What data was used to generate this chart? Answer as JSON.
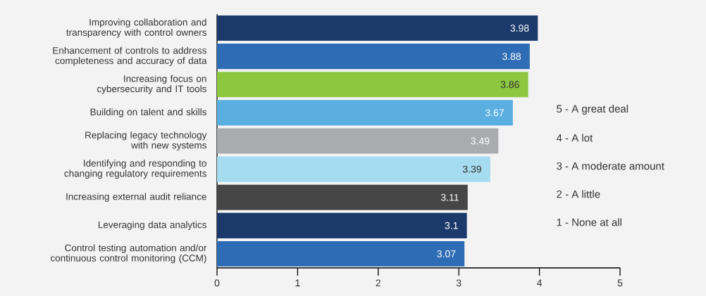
{
  "chart_data": {
    "type": "bar",
    "orientation": "horizontal",
    "categories": [
      "Improving collaboration and transparency with control owners",
      "Enhancement of controls to address completeness and accuracy of data",
      "Increasing focus on cybersecurity and IT tools",
      "Building on talent and skills",
      "Replacing legacy technology with new systems",
      "Identifying and responding to changing regulatory requirements",
      "Increasing external audit reliance",
      "Leveraging data analytics",
      "Control testing automation and/or continuous control monitoring (CCM)"
    ],
    "values": [
      3.98,
      3.88,
      3.86,
      3.67,
      3.49,
      3.39,
      3.11,
      3.1,
      3.07
    ],
    "colors": [
      "#1b3a6b",
      "#2e6db5",
      "#8dc63f",
      "#5aafe0",
      "#a9abae",
      "#a6dcf0",
      "#464646",
      "#1b3a6b",
      "#2e6db5"
    ],
    "xlim": [
      0,
      5
    ],
    "xticks": [
      0,
      1,
      2,
      3,
      4,
      5
    ],
    "data_labels": true,
    "annotations": [
      "5 - A great deal",
      "4 - A lot",
      "3 - A moderate amount",
      "2 - A little",
      "1 - None at all"
    ]
  }
}
